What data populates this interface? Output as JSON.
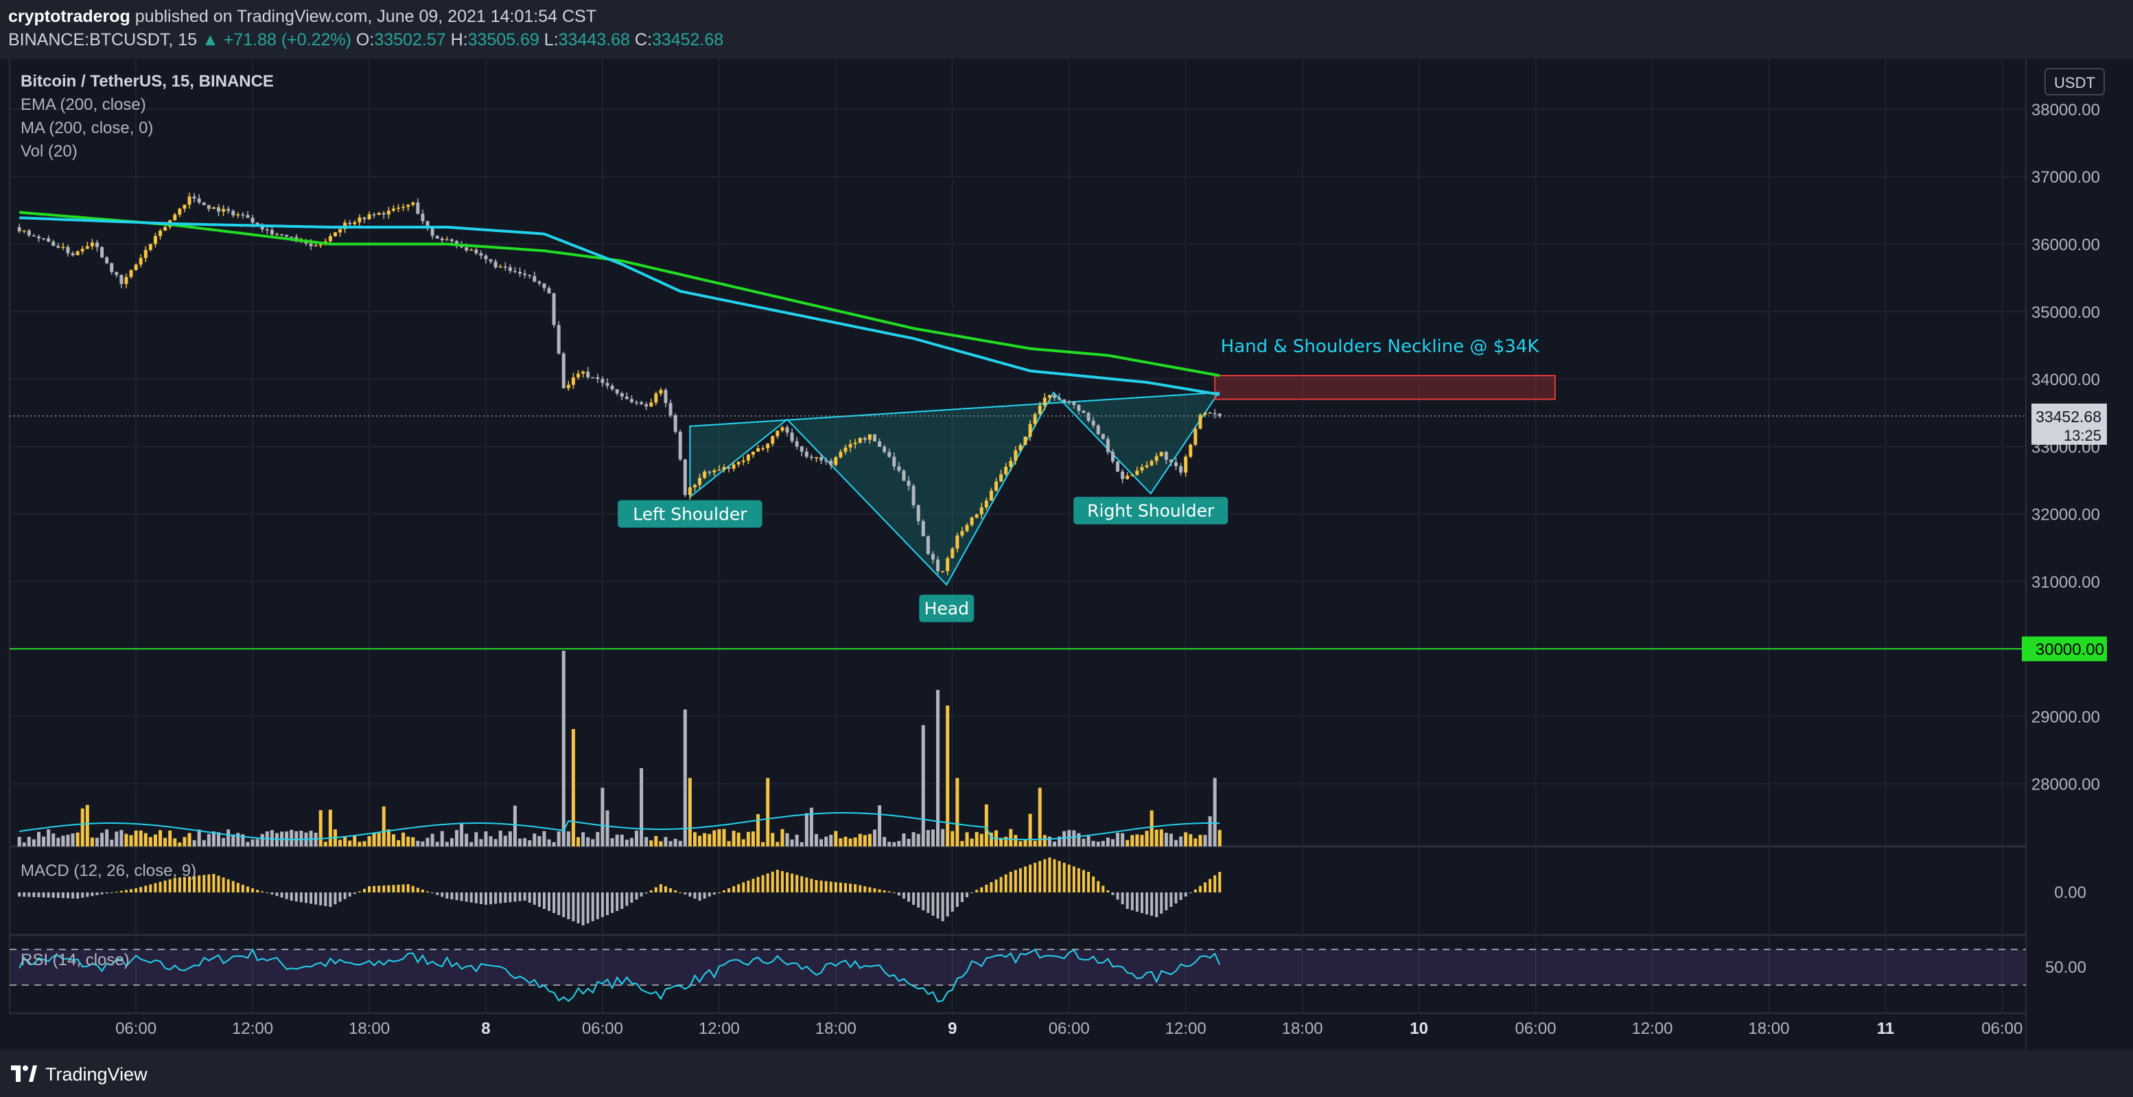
{
  "header": {
    "publisher": "cryptotraderog",
    "published_text": "published on TradingView.com, June 09, 2021 14:01:54 CST",
    "symbol": "BINANCE:BTCUSDT, 15",
    "change_arrow": "▲",
    "change": "+71.88 (+0.22%)",
    "open_label": "O:",
    "open": "33502.57",
    "high_label": "H:",
    "high": "33505.69",
    "low_label": "L:",
    "low": "33443.68",
    "close_label": "C:",
    "close": "33452.68"
  },
  "legend": {
    "title": "Bitcoin / TetherUS, 15, BINANCE",
    "ema": "EMA (200, close)",
    "ma": "MA (200, close, 0)",
    "vol": "Vol (20)",
    "macd": "MACD (12, 26, close, 9)",
    "rsi": "RSI (14, close)"
  },
  "footer": {
    "brand": "TradingView"
  },
  "colors": {
    "background": "#131722",
    "panel": "#1e222d",
    "candle_up": "#f5c342",
    "candle_down": "#b2b5be",
    "ema": "#22d3ee",
    "ma": "#22dd22",
    "support_line": "#22dd22",
    "pattern_fill": "#1e8f8b",
    "label_bg": "#17938a",
    "neckline_zone": "#e53935",
    "rsi_band": "#7e57c2",
    "accent": "#26a69a"
  },
  "chart_data": {
    "type": "candlestick",
    "symbol": "Bitcoin / TetherUS",
    "timeframe": "15",
    "currency": "USDT",
    "price_axis": {
      "ticks": [
        38000,
        37000,
        36000,
        35000,
        34000,
        33000,
        32000,
        31000,
        29000,
        28000
      ],
      "tick_labels": [
        "38000.00",
        "37000.00",
        "36000.00",
        "35000.00",
        "34000.00",
        "33000.00",
        "32000.00",
        "31000.00",
        "29000.00",
        "28000.00"
      ],
      "range": [
        27000,
        38600
      ]
    },
    "time_axis": {
      "ticks": [
        6,
        12,
        18,
        24,
        30,
        36,
        42,
        48,
        54,
        60,
        66,
        72,
        78,
        84,
        90,
        96,
        102
      ],
      "tick_labels": [
        "06:00",
        "12:00",
        "18:00",
        "8",
        "06:00",
        "12:00",
        "18:00",
        "9",
        "06:00",
        "12:00",
        "18:00",
        "10",
        "06:00",
        "12:00",
        "18:00",
        "11",
        "06:00"
      ],
      "range_hours": [
        -0.5,
        102.8
      ],
      "last_bar_hour": 61.75
    },
    "price_path": [
      [
        0,
        36250
      ],
      [
        2,
        36000
      ],
      [
        3,
        35850
      ],
      [
        4,
        36050
      ],
      [
        5.5,
        35400
      ],
      [
        7,
        36000
      ],
      [
        9,
        36700
      ],
      [
        10,
        36550
      ],
      [
        12,
        36400
      ],
      [
        13,
        36200
      ],
      [
        14,
        36100
      ],
      [
        15.5,
        35950
      ],
      [
        17,
        36300
      ],
      [
        18,
        36400
      ],
      [
        19.5,
        36500
      ],
      [
        20.5,
        36600
      ],
      [
        21.5,
        36100
      ],
      [
        22.5,
        36050
      ],
      [
        24,
        35800
      ],
      [
        25,
        35650
      ],
      [
        26.5,
        35500
      ],
      [
        27.5,
        35300
      ],
      [
        28.3,
        33800
      ],
      [
        29,
        34100
      ],
      [
        30,
        34000
      ],
      [
        31.5,
        33700
      ],
      [
        32.5,
        33600
      ],
      [
        33.3,
        33850
      ],
      [
        34,
        33250
      ],
      [
        34.5,
        32300
      ],
      [
        35.5,
        32600
      ],
      [
        37,
        32700
      ],
      [
        38.5,
        33000
      ],
      [
        39.5,
        33300
      ],
      [
        40.5,
        32900
      ],
      [
        42,
        32750
      ],
      [
        43,
        33050
      ],
      [
        44,
        33150
      ],
      [
        45,
        32850
      ],
      [
        46,
        32400
      ],
      [
        47,
        31400
      ],
      [
        47.7,
        31100
      ],
      [
        48.5,
        31700
      ],
      [
        49.5,
        32000
      ],
      [
        50.5,
        32450
      ],
      [
        52,
        33150
      ],
      [
        53,
        33750
      ],
      [
        54,
        33700
      ],
      [
        55,
        33500
      ],
      [
        56,
        33100
      ],
      [
        57,
        32500
      ],
      [
        58,
        32700
      ],
      [
        59,
        32900
      ],
      [
        60,
        32600
      ],
      [
        61,
        33500
      ],
      [
        61.75,
        33452.68
      ]
    ],
    "ema200": [
      [
        0,
        36390
      ],
      [
        8,
        36300
      ],
      [
        16,
        36250
      ],
      [
        22,
        36250
      ],
      [
        27,
        36150
      ],
      [
        31,
        35700
      ],
      [
        34,
        35300
      ],
      [
        40,
        34950
      ],
      [
        46,
        34600
      ],
      [
        52,
        34120
      ],
      [
        58,
        33950
      ],
      [
        61.75,
        33770
      ]
    ],
    "ma200": [
      [
        0,
        36470
      ],
      [
        8,
        36280
      ],
      [
        16,
        36000
      ],
      [
        22,
        36000
      ],
      [
        27,
        35900
      ],
      [
        31,
        35750
      ],
      [
        34,
        35550
      ],
      [
        40,
        35150
      ],
      [
        46,
        34750
      ],
      [
        52,
        34450
      ],
      [
        56,
        34350
      ],
      [
        61.75,
        34050
      ]
    ],
    "pattern": {
      "points": [
        [
          34.5,
          33300
        ],
        [
          34.5,
          32250
        ],
        [
          39.5,
          33400
        ],
        [
          47.7,
          30950
        ],
        [
          53.2,
          33800
        ],
        [
          58.2,
          32300
        ],
        [
          61.7,
          33800
        ]
      ],
      "labels": [
        "Left Shoulder",
        "Head",
        "Right Shoulder"
      ],
      "label_positions": [
        [
          34.5,
          32000
        ],
        [
          47.7,
          30600
        ],
        [
          58.2,
          32050
        ]
      ]
    },
    "neckline_zone": {
      "price_from": 33700,
      "price_to": 34050,
      "hour_from": 61.5,
      "hour_to": 79
    },
    "annotation": {
      "text": "Hand & Shoulders Neckline @ $34K",
      "anchor": [
        61.8,
        34500
      ]
    },
    "support_line": {
      "price": 30000,
      "label": "30000.00"
    },
    "current_price": {
      "label": "33452.68",
      "countdown": "13:25"
    },
    "volume": {
      "spikes": [
        [
          28,
          1.0
        ],
        [
          28.4,
          0.6
        ],
        [
          30,
          0.3
        ],
        [
          32,
          0.4
        ],
        [
          34.3,
          0.7
        ],
        [
          34.6,
          0.35
        ],
        [
          38.5,
          0.35
        ],
        [
          46.5,
          0.62
        ],
        [
          47.2,
          0.8
        ],
        [
          47.7,
          0.72
        ],
        [
          48.2,
          0.35
        ],
        [
          52.5,
          0.3
        ],
        [
          61.4,
          0.35
        ]
      ]
    },
    "macd": {
      "label": "0.00",
      "values": [
        [
          0,
          -0.1
        ],
        [
          3,
          -0.15
        ],
        [
          6,
          0.1
        ],
        [
          8,
          0.35
        ],
        [
          10,
          0.45
        ],
        [
          12,
          0.1
        ],
        [
          14,
          -0.2
        ],
        [
          16,
          -0.35
        ],
        [
          18,
          0.15
        ],
        [
          20,
          0.2
        ],
        [
          22,
          -0.15
        ],
        [
          24,
          -0.3
        ],
        [
          26,
          -0.2
        ],
        [
          28,
          -0.6
        ],
        [
          29,
          -0.8
        ],
        [
          31,
          -0.4
        ],
        [
          33,
          0.2
        ],
        [
          35,
          -0.2
        ],
        [
          37,
          0.2
        ],
        [
          39,
          0.55
        ],
        [
          41,
          0.3
        ],
        [
          43,
          0.2
        ],
        [
          45,
          0.0
        ],
        [
          46,
          -0.3
        ],
        [
          47.5,
          -0.7
        ],
        [
          49,
          0.0
        ],
        [
          51,
          0.5
        ],
        [
          53,
          0.85
        ],
        [
          55,
          0.5
        ],
        [
          57,
          -0.4
        ],
        [
          58.5,
          -0.6
        ],
        [
          60,
          -0.1
        ],
        [
          61.75,
          0.5
        ]
      ]
    },
    "rsi": {
      "label": "50.00",
      "upper": 70,
      "lower": 30,
      "values": [
        [
          0,
          55
        ],
        [
          2,
          60
        ],
        [
          4,
          50
        ],
        [
          6,
          58
        ],
        [
          8,
          48
        ],
        [
          10,
          58
        ],
        [
          12,
          65
        ],
        [
          14,
          50
        ],
        [
          16,
          55
        ],
        [
          18,
          52
        ],
        [
          20,
          62
        ],
        [
          22,
          55
        ],
        [
          24,
          48
        ],
        [
          26,
          42
        ],
        [
          28,
          12
        ],
        [
          29,
          25
        ],
        [
          31,
          35
        ],
        [
          33,
          20
        ],
        [
          35,
          38
        ],
        [
          37,
          55
        ],
        [
          39,
          58
        ],
        [
          41,
          45
        ],
        [
          43,
          55
        ],
        [
          45,
          42
        ],
        [
          46,
          28
        ],
        [
          47.5,
          15
        ],
        [
          49,
          55
        ],
        [
          51,
          60
        ],
        [
          53,
          68
        ],
        [
          55,
          62
        ],
        [
          57,
          45
        ],
        [
          58.5,
          38
        ],
        [
          60,
          55
        ],
        [
          61,
          62
        ],
        [
          61.75,
          58
        ]
      ]
    }
  }
}
